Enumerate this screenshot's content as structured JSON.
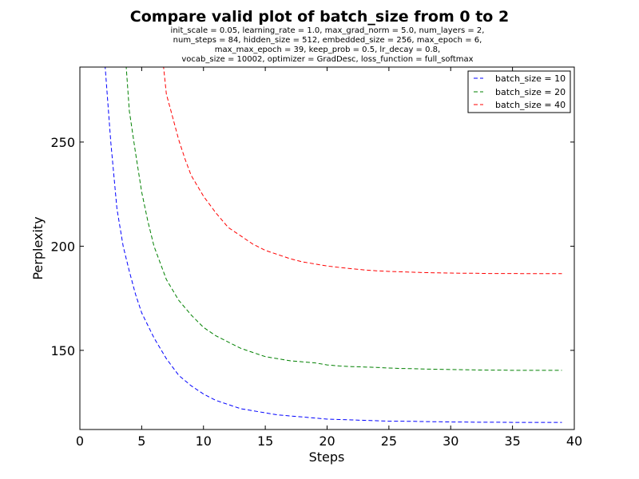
{
  "chart_data": {
    "type": "line",
    "title": "Compare valid plot of batch_size from 0 to 2",
    "subtitle_lines": [
      "init_scale = 0.05, learning_rate = 1.0, max_grad_norm = 5.0, num_layers = 2,",
      "num_steps = 84, hidden_size = 512, embedded_size = 256, max_epoch = 6,",
      "max_max_epoch = 39, keep_prob = 0.5, lr_decay = 0.8,",
      "vocab_size = 10002, optimizer = GradDesc, loss_function = full_softmax"
    ],
    "xlabel": "Steps",
    "ylabel": "Perplexity",
    "xlim": [
      0,
      40
    ],
    "ylim": [
      112,
      286
    ],
    "xticks": [
      0,
      5,
      10,
      15,
      20,
      25,
      30,
      35,
      40
    ],
    "yticks": [
      150,
      200,
      250
    ],
    "legend_position": "top-right",
    "line_style": "dashed",
    "grid": false,
    "series": [
      {
        "name": "batch_size = 10",
        "color": "#0000ff",
        "x": [
          2,
          2.5,
          3,
          3.5,
          4,
          4.5,
          5,
          6,
          7,
          8,
          9,
          10,
          11,
          12,
          13,
          14,
          15,
          16,
          17,
          18,
          19,
          20,
          21,
          22,
          23,
          24,
          25,
          26,
          27,
          28,
          29,
          30,
          31,
          32,
          33,
          34,
          35,
          36,
          37,
          38,
          39
        ],
        "values": [
          290,
          250,
          218,
          200,
          188,
          177,
          168,
          156,
          146,
          138,
          133,
          129,
          126,
          124,
          122,
          121,
          120,
          119,
          118.5,
          118,
          117.5,
          117,
          116.8,
          116.6,
          116.4,
          116.2,
          116,
          116,
          115.9,
          115.8,
          115.7,
          115.6,
          115.6,
          115.5,
          115.5,
          115.5,
          115.4,
          115.4,
          115.4,
          115.4,
          115.4
        ]
      },
      {
        "name": "batch_size = 20",
        "color": "#008000",
        "x": [
          3.7,
          4,
          4.5,
          5,
          5.5,
          6,
          7,
          8,
          9,
          10,
          11,
          12,
          13,
          14,
          15,
          16,
          17,
          18,
          19,
          20,
          21,
          22,
          23,
          24,
          25,
          26,
          27,
          28,
          29,
          30,
          31,
          32,
          33,
          34,
          35,
          36,
          37,
          38,
          39
        ],
        "values": [
          290,
          265,
          245,
          226,
          212,
          200,
          184,
          174,
          167,
          161,
          157,
          154,
          151,
          149,
          147,
          146,
          145,
          144.5,
          144,
          143,
          142.5,
          142.2,
          142,
          141.8,
          141.5,
          141.3,
          141.2,
          141,
          140.9,
          140.8,
          140.7,
          140.6,
          140.5,
          140.5,
          140.4,
          140.4,
          140.4,
          140.4,
          140.4
        ]
      },
      {
        "name": "batch_size = 40",
        "color": "#ff0000",
        "x": [
          6.7,
          7,
          7.5,
          8,
          8.5,
          9,
          10,
          11,
          12,
          13,
          14,
          15,
          16,
          17,
          18,
          19,
          20,
          21,
          22,
          23,
          24,
          25,
          26,
          27,
          28,
          29,
          30,
          31,
          32,
          33,
          34,
          35,
          36,
          37,
          38,
          39
        ],
        "values": [
          290,
          273,
          262,
          251,
          242,
          234,
          224,
          216,
          209,
          205,
          201,
          198,
          196,
          194,
          192.5,
          191.5,
          190.5,
          189.8,
          189.2,
          188.6,
          188.2,
          187.9,
          187.7,
          187.5,
          187.3,
          187.2,
          187.1,
          187,
          187,
          186.9,
          186.9,
          186.9,
          186.8,
          186.8,
          186.8,
          186.8
        ]
      }
    ]
  }
}
